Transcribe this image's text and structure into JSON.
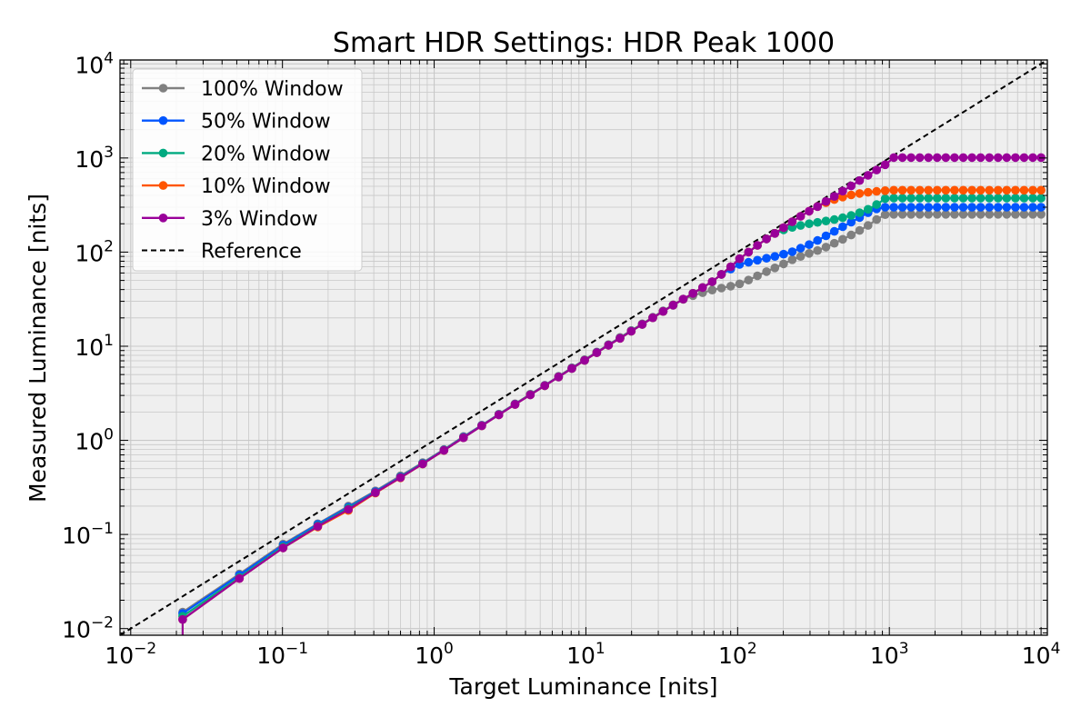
{
  "colors": {
    "plot_background": "#efefef",
    "grid": "#c8c8c8",
    "reference": "#000000"
  },
  "chart_data": {
    "type": "line",
    "title": "Smart HDR Settings: HDR Peak 1000",
    "xlabel": "Target Luminance [nits]",
    "ylabel": "Measured Luminance [nits]",
    "xscale": "log",
    "yscale": "log",
    "xlim": [
      0.0085,
      11000
    ],
    "ylim": [
      0.0085,
      11000
    ],
    "grid": true,
    "legend_position": "top-left",
    "x_ticks": [
      {
        "base": "10",
        "exp": "−2",
        "value": 0.01
      },
      {
        "base": "10",
        "exp": "−1",
        "value": 0.1
      },
      {
        "base": "10",
        "exp": "0",
        "value": 1
      },
      {
        "base": "10",
        "exp": "1",
        "value": 10
      },
      {
        "base": "10",
        "exp": "2",
        "value": 100
      },
      {
        "base": "10",
        "exp": "3",
        "value": 1000
      },
      {
        "base": "10",
        "exp": "4",
        "value": 10000
      }
    ],
    "y_ticks": [
      {
        "base": "10",
        "exp": "−2",
        "value": 0.01
      },
      {
        "base": "10",
        "exp": "−1",
        "value": 0.1
      },
      {
        "base": "10",
        "exp": "0",
        "value": 1
      },
      {
        "base": "10",
        "exp": "1",
        "value": 10
      },
      {
        "base": "10",
        "exp": "2",
        "value": 100
      },
      {
        "base": "10",
        "exp": "3",
        "value": 1000
      },
      {
        "base": "10",
        "exp": "4",
        "value": 10000
      }
    ],
    "x": [
      0.022,
      0.052,
      0.101,
      0.171,
      0.272,
      0.41,
      0.6,
      0.84,
      1.16,
      1.56,
      2.06,
      2.67,
      3.41,
      4.3,
      5.36,
      6.61,
      8.08,
      9.8,
      11.8,
      14.1,
      16.8,
      19.9,
      23.5,
      27.6,
      32.3,
      37.6,
      43.8,
      50.8,
      58.8,
      67.9,
      78.2,
      90,
      103,
      118,
      135,
      155,
      176,
      201,
      229,
      260,
      296,
      336,
      382,
      434,
      493,
      560,
      637,
      724,
      824,
      938,
      1070,
      1219,
      1391,
      1587,
      1811,
      2066,
      2357,
      2690,
      3070,
      3503,
      3997,
      4561,
      5204,
      5937,
      6774,
      7729,
      8818,
      10000
    ],
    "series": [
      {
        "name": "100% Window",
        "color": "#808080",
        "values": [
          0.015,
          0.038,
          0.079,
          0.13,
          0.2,
          0.29,
          0.42,
          0.58,
          0.8,
          1.1,
          1.45,
          1.9,
          2.45,
          3.1,
          3.85,
          4.8,
          5.9,
          7.2,
          8.7,
          10.4,
          12.4,
          14.7,
          17.3,
          20.3,
          23.8,
          27.6,
          31.5,
          34.5,
          37,
          39.5,
          41.5,
          43.5,
          46,
          50.5,
          56,
          62,
          68,
          75,
          83,
          90,
          97,
          104,
          113,
          124,
          137,
          152,
          170,
          192,
          222,
          250,
          252,
          252,
          252,
          252,
          252,
          252,
          252,
          252,
          252,
          252,
          252,
          252,
          252,
          252,
          252,
          252,
          252,
          252
        ]
      },
      {
        "name": "50% Window",
        "color": "#0055ff",
        "values": [
          0.0145,
          0.037,
          0.077,
          0.128,
          0.195,
          0.285,
          0.41,
          0.57,
          0.79,
          1.08,
          1.44,
          1.88,
          2.42,
          3.06,
          3.82,
          4.74,
          5.82,
          7.1,
          8.6,
          10.3,
          12.2,
          14.5,
          17.1,
          20.1,
          23.5,
          27.3,
          31.6,
          36.5,
          42,
          48.5,
          58,
          66,
          74,
          78,
          82,
          86,
          90,
          95,
          101,
          110,
          120,
          133,
          149,
          166,
          186,
          208,
          233,
          262,
          288,
          300,
          300,
          300,
          300,
          300,
          300,
          300,
          300,
          300,
          300,
          300,
          300,
          300,
          300,
          300,
          300,
          300,
          300,
          300
        ]
      },
      {
        "name": "20% Window",
        "color": "#00aa80",
        "values": [
          0.0135,
          0.035,
          0.074,
          0.124,
          0.19,
          0.28,
          0.405,
          0.565,
          0.785,
          1.07,
          1.43,
          1.87,
          2.41,
          3.05,
          3.81,
          4.72,
          5.8,
          7.07,
          8.55,
          10.25,
          12.15,
          14.45,
          17.05,
          20.05,
          23.45,
          27.3,
          31.6,
          36.5,
          42,
          48.5,
          58,
          70,
          85,
          100,
          118,
          138,
          158,
          172,
          183,
          192,
          200,
          207,
          214,
          222,
          232,
          245,
          262,
          285,
          320,
          370,
          375,
          375,
          375,
          375,
          375,
          375,
          375,
          375,
          375,
          375,
          375,
          375,
          375,
          375,
          375,
          375,
          375,
          375
        ]
      },
      {
        "name": "10% Window",
        "color": "#ff5500",
        "values": [
          0.0125,
          0.034,
          0.072,
          0.12,
          0.18,
          0.275,
          0.4,
          0.56,
          0.78,
          1.065,
          1.425,
          1.865,
          2.405,
          3.045,
          3.805,
          4.715,
          5.795,
          7.065,
          8.545,
          10.24,
          12.14,
          14.44,
          17.04,
          20.04,
          23.44,
          27.3,
          31.6,
          36.5,
          42,
          48.5,
          58,
          70,
          85,
          100,
          118,
          138,
          158,
          182,
          210,
          240,
          272,
          305,
          335,
          362,
          385,
          405,
          420,
          432,
          442,
          450,
          455,
          455,
          455,
          455,
          455,
          455,
          455,
          455,
          455,
          455,
          455,
          455,
          455,
          455,
          455,
          455,
          455,
          455
        ]
      },
      {
        "name": "3% Window",
        "color": "#990099",
        "values": [
          0.0125,
          0.034,
          0.072,
          0.122,
          0.185,
          0.278,
          0.402,
          0.562,
          0.782,
          1.066,
          1.426,
          1.866,
          2.406,
          3.046,
          3.806,
          4.716,
          5.796,
          7.066,
          8.546,
          10.24,
          12.14,
          14.44,
          17.04,
          20.04,
          23.44,
          27.3,
          31.6,
          36.5,
          42,
          48.5,
          58,
          70,
          85,
          100,
          118,
          138,
          158,
          182,
          210,
          240,
          272,
          305,
          345,
          390,
          445,
          505,
          575,
          655,
          745,
          848,
          1010,
          1010,
          1010,
          1010,
          1010,
          1010,
          1010,
          1010,
          1010,
          1010,
          1010,
          1010,
          1010,
          1010,
          1010,
          1010,
          1010,
          1010
        ]
      }
    ],
    "reference": {
      "name": "Reference",
      "style": "dashed",
      "x": [
        0.0085,
        11000
      ],
      "y": [
        0.0085,
        11000
      ]
    }
  }
}
